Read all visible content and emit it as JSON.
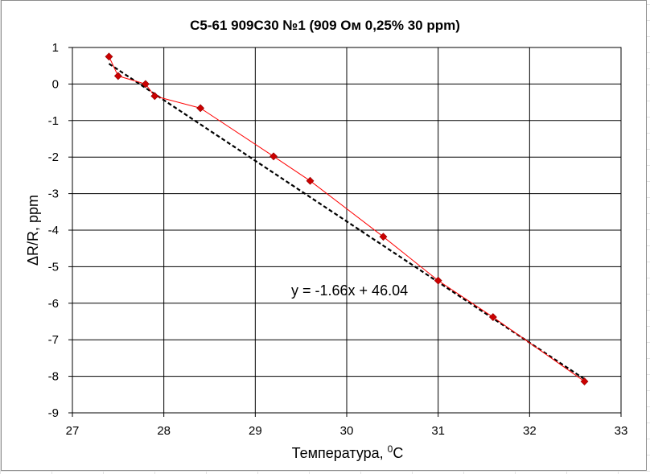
{
  "chart_data": {
    "type": "scatter",
    "title": "C5-61 909C30 №1 (909 Ом 0,25% 30 ppm)",
    "xlabel": "Температура, ",
    "xlabel_sup": "0",
    "xlabel_tail": "C",
    "ylabel": "ΔR/R, ppm",
    "xlim": [
      27,
      33
    ],
    "ylim": [
      -9,
      1
    ],
    "x_ticks": [
      "27",
      "28",
      "29",
      "30",
      "31",
      "32",
      "33"
    ],
    "y_ticks": [
      "1",
      "0",
      "-1",
      "-2",
      "-3",
      "-4",
      "-5",
      "-6",
      "-7",
      "-8",
      "-9"
    ],
    "grid": true,
    "series": [
      {
        "x": [
          27.4,
          27.5,
          27.8,
          27.9,
          28.4,
          29.2,
          29.6,
          30.4,
          31.0,
          31.6,
          32.6
        ],
        "y": [
          0.75,
          0.22,
          0.0,
          -0.33,
          -0.66,
          -1.98,
          -2.65,
          -4.18,
          -5.38,
          -6.38,
          -8.14
        ],
        "color": "#ff0000",
        "marker_color": "#cc0000"
      }
    ],
    "trendline": {
      "slope": -1.66,
      "intercept": 46.04,
      "x_range": [
        27.4,
        32.6
      ],
      "color": "#000000",
      "equation": "y = -1.66x + 46.04"
    }
  }
}
